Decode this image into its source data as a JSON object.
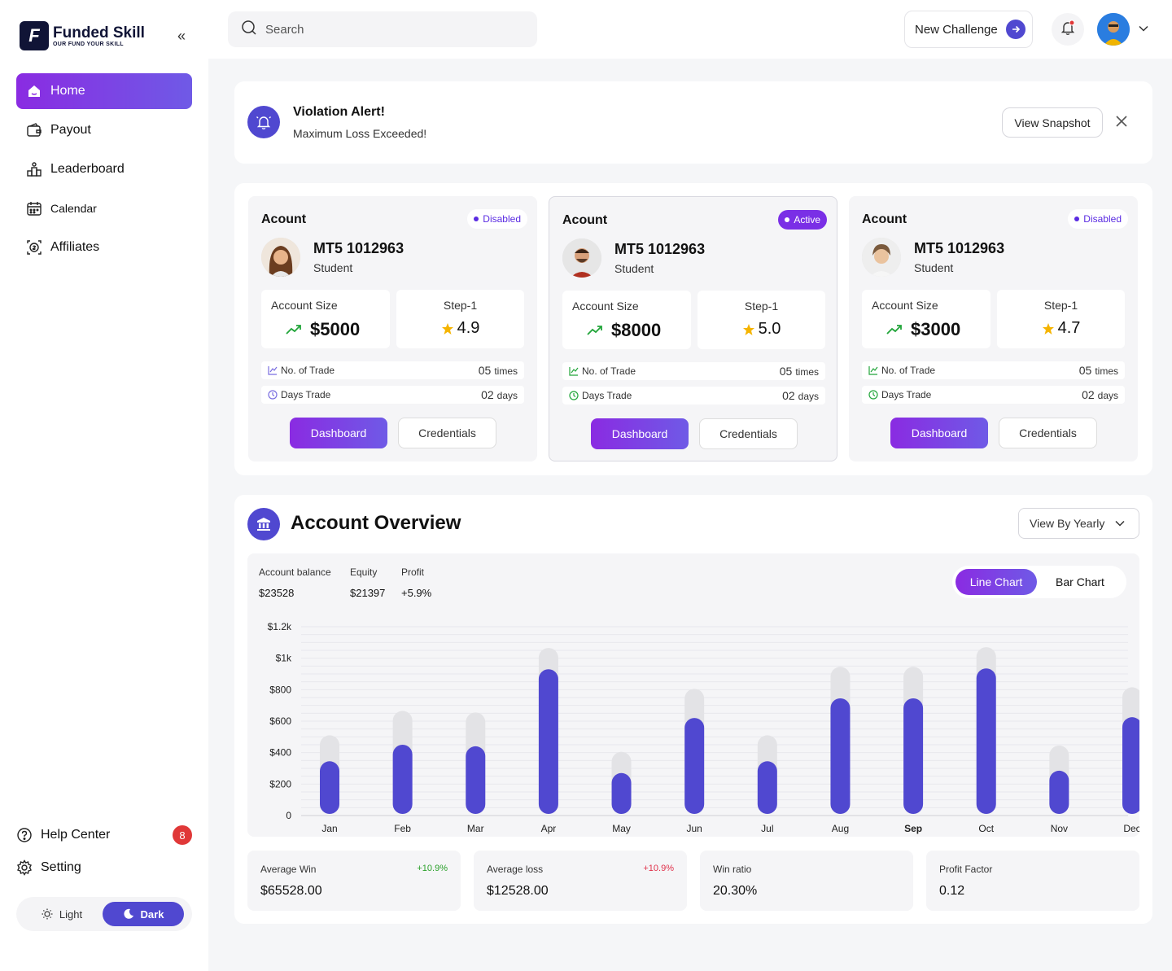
{
  "brand": {
    "name": "Funded Skill",
    "tagline": "OUR FUND YOUR SKILL",
    "logo_letter": "F"
  },
  "sidebar": {
    "items": [
      {
        "label": "Home",
        "icon": "home-icon",
        "active": true
      },
      {
        "label": "Payout",
        "icon": "wallet-icon"
      },
      {
        "label": "Leaderboard",
        "icon": "leaderboard-icon"
      },
      {
        "label": "Calendar",
        "icon": "calendar-icon"
      },
      {
        "label": "Affiliates",
        "icon": "affiliates-icon"
      }
    ],
    "help_label": "Help Center",
    "help_badge": "8",
    "setting_label": "Setting",
    "theme": {
      "light": "Light",
      "dark": "Dark",
      "selected": "Dark"
    }
  },
  "topbar": {
    "search_placeholder": "Search",
    "new_challenge": "New Challenge"
  },
  "alert": {
    "title": "Violation Alert!",
    "message": "Maximum Loss Exceeded!",
    "button": "View Snapshot"
  },
  "accounts": [
    {
      "title": "Acount",
      "status": "Disabled",
      "id": "MT5 1012963",
      "role": "Student",
      "size_label": "Account Size",
      "size": "$5000",
      "step_label": "Step-1",
      "rating": "4.9",
      "trades_label": "No. of Trade",
      "trades": "05",
      "trades_unit": "times",
      "days_label": "Days Trade",
      "days": "02",
      "days_unit": "days",
      "dashboard": "Dashboard",
      "credentials": "Credentials"
    },
    {
      "title": "Acount",
      "status": "Active",
      "id": "MT5 1012963",
      "role": "Student",
      "size_label": "Account Size",
      "size": "$8000",
      "step_label": "Step-1",
      "rating": "5.0",
      "trades_label": "No. of Trade",
      "trades": "05",
      "trades_unit": "times",
      "days_label": "Days Trade",
      "days": "02",
      "days_unit": "days",
      "dashboard": "Dashboard",
      "credentials": "Credentials"
    },
    {
      "title": "Acount",
      "status": "Disabled",
      "id": "MT5 1012963",
      "role": "Student",
      "size_label": "Account Size",
      "size": "$3000",
      "step_label": "Step-1",
      "rating": "4.7",
      "trades_label": "No. of Trade",
      "trades": "05",
      "trades_unit": "times",
      "days_label": "Days Trade",
      "days": "02",
      "days_unit": "days",
      "dashboard": "Dashboard",
      "credentials": "Credentials"
    }
  ],
  "overview": {
    "title": "Account Overview",
    "view_select": "View By Yearly",
    "stats": [
      {
        "label": "Account balance",
        "value": "$23528"
      },
      {
        "label": "Equity",
        "value": "$21397"
      },
      {
        "label": "Profit",
        "value": "+5.9%"
      }
    ],
    "toggle": {
      "line": "Line Chart",
      "bar": "Bar Chart",
      "selected": "Line Chart"
    },
    "metrics": [
      {
        "label": "Average Win",
        "change": "+10.9%",
        "change_color": "#2aa02a",
        "value": "$65528.00"
      },
      {
        "label": "Average loss",
        "change": "+10.9%",
        "change_color": "#e0304a",
        "value": "$12528.00"
      },
      {
        "label": "Win ratio",
        "change": "",
        "value": "20.30%"
      },
      {
        "label": "Profit Factor",
        "change": "",
        "value": "0.12"
      }
    ]
  },
  "colors": {
    "accent": "#5048d0",
    "gradient_start": "#8a2be2",
    "gradient_end": "#6f5ae6",
    "track": "#e3e3e6"
  },
  "chart_data": {
    "type": "bar",
    "categories": [
      "Jan",
      "Feb",
      "Mar",
      "Apr",
      "May",
      "Jun",
      "Jul",
      "Aug",
      "Sep",
      "Oct",
      "Nov",
      "Dec"
    ],
    "highlight_category": "Sep",
    "series": [
      {
        "values": [
          345,
          450,
          440,
          930,
          270,
          620,
          345,
          745,
          745,
          935,
          285,
          625
        ]
      },
      {
        "values": [
          510,
          665,
          655,
          1065,
          405,
          805,
          510,
          945,
          945,
          1070,
          445,
          815
        ]
      }
    ],
    "y_ticks": [
      "0",
      "$200",
      "$400",
      "$600",
      "$800",
      "$1k",
      "$1.2k"
    ],
    "ylim": [
      0,
      1200
    ],
    "grid": true
  }
}
